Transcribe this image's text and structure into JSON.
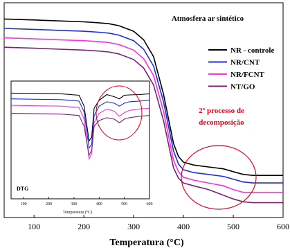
{
  "chart_data": [
    {
      "type": "line",
      "title": "",
      "annotation_title": "Atmosfera ar sintético",
      "xlabel": "Temperatura (°C)",
      "ylabel": "",
      "xlim": [
        40,
        600
      ],
      "ylim": [
        0,
        100
      ],
      "x_ticks": [
        "100",
        "200",
        "300",
        "400",
        "500",
        "600"
      ],
      "legend_position": "right",
      "grid": false,
      "annotations": [
        {
          "text": "2º processo de decomposição",
          "lines": [
            "2º processo de",
            "decomposição"
          ],
          "color": "#e8001e"
        }
      ],
      "series": [
        {
          "name": "NR - controle",
          "color": "#000000",
          "x": [
            40,
            100,
            150,
            200,
            230,
            250,
            270,
            300,
            320,
            340,
            360,
            380,
            390,
            400,
            420,
            450,
            480,
            500,
            520,
            540,
            600
          ],
          "y": [
            98,
            97.5,
            97,
            96.5,
            96,
            95.5,
            94.5,
            91.5,
            87,
            78,
            58,
            32,
            25,
            22,
            20.5,
            19.5,
            18.5,
            17,
            15.5,
            15,
            15
          ]
        },
        {
          "name": "NR/CNT",
          "color": "#1a2de6",
          "x": [
            40,
            100,
            150,
            200,
            230,
            250,
            270,
            300,
            320,
            340,
            360,
            380,
            390,
            400,
            420,
            450,
            480,
            500,
            520,
            540,
            600
          ],
          "y": [
            93,
            92.5,
            92,
            91.5,
            91,
            90.5,
            89.5,
            86.5,
            82,
            73,
            54,
            28,
            21,
            18,
            16.5,
            15.5,
            14.5,
            13,
            11.5,
            11,
            11
          ]
        },
        {
          "name": "NR/FCNT",
          "color": "#ff2ee0",
          "x": [
            40,
            100,
            150,
            200,
            230,
            250,
            270,
            300,
            320,
            340,
            360,
            380,
            390,
            400,
            420,
            450,
            480,
            500,
            520,
            540,
            600
          ],
          "y": [
            88,
            87.5,
            87,
            86.5,
            86,
            85.5,
            84.5,
            81.5,
            77,
            68,
            49,
            23,
            17,
            14,
            12.5,
            11,
            9.5,
            7.5,
            6,
            6,
            6
          ]
        },
        {
          "name": "NT/GO",
          "color": "#7b1f78",
          "x": [
            40,
            100,
            150,
            200,
            230,
            250,
            270,
            300,
            320,
            340,
            360,
            380,
            390,
            400,
            420,
            450,
            480,
            500,
            520,
            540,
            600
          ],
          "y": [
            83,
            82.5,
            82,
            81.5,
            81,
            80.5,
            79.5,
            76.5,
            72,
            63,
            44,
            19,
            13.5,
            11,
            9.5,
            7.5,
            4.5,
            2.5,
            1,
            0.5,
            0.5
          ]
        }
      ]
    },
    {
      "type": "line",
      "title": "",
      "panel_label": "DTG",
      "xlabel": "Temperatura (°C)",
      "ylabel": "",
      "xlim": [
        50,
        600
      ],
      "ylim": [
        -10,
        1.5
      ],
      "x_ticks": [
        "100",
        "200",
        "300",
        "400",
        "500",
        "600"
      ],
      "grid": false,
      "series": [
        {
          "color": "#000000",
          "x": [
            50,
            150,
            250,
            320,
            340,
            360,
            370,
            380,
            400,
            430,
            460,
            480,
            500,
            520,
            560,
            600
          ],
          "y": [
            0.6,
            0.55,
            0.5,
            0.3,
            -1.2,
            -6.0,
            -5.5,
            -1.5,
            -0.4,
            0.4,
            0.1,
            -0.2,
            0.3,
            0.35,
            0.4,
            0.5
          ]
        },
        {
          "color": "#1a2de6",
          "x": [
            50,
            150,
            250,
            320,
            340,
            360,
            370,
            380,
            400,
            430,
            460,
            480,
            500,
            520,
            560,
            600
          ],
          "y": [
            -0.2,
            -0.25,
            -0.3,
            -0.5,
            -2.0,
            -7.0,
            -6.5,
            -2.5,
            -1.2,
            -0.6,
            -0.8,
            -1.2,
            -0.8,
            -0.6,
            -0.5,
            -0.4
          ]
        },
        {
          "color": "#ff2ee0",
          "x": [
            50,
            150,
            250,
            320,
            340,
            360,
            370,
            380,
            400,
            430,
            460,
            480,
            500,
            520,
            560,
            600
          ],
          "y": [
            -1.1,
            -1.15,
            -1.2,
            -1.4,
            -3.0,
            -8.5,
            -7.8,
            -3.5,
            -2.2,
            -1.6,
            -1.9,
            -2.6,
            -2.1,
            -1.8,
            -1.6,
            -1.5
          ]
        },
        {
          "color": "#7b1f78",
          "x": [
            50,
            150,
            250,
            320,
            340,
            360,
            370,
            380,
            400,
            430,
            460,
            480,
            500,
            520,
            560,
            600
          ],
          "y": [
            -2.2,
            -2.25,
            -2.3,
            -2.5,
            -4.0,
            -8.0,
            -7.3,
            -4.0,
            -3.2,
            -2.8,
            -3.0,
            -3.5,
            -3.0,
            -2.8,
            -2.6,
            -2.5
          ]
        }
      ]
    }
  ]
}
